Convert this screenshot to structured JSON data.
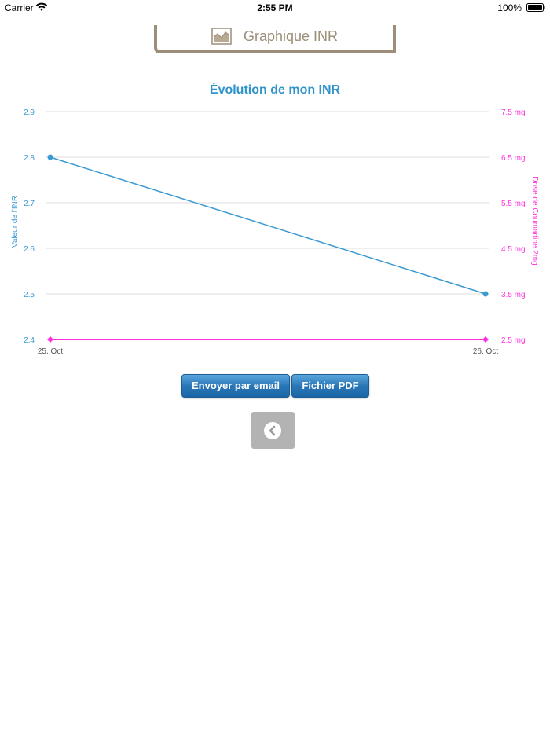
{
  "status_bar": {
    "carrier": "Carrier",
    "time": "2:55 PM",
    "battery": "100%"
  },
  "header": {
    "title": "Graphique INR",
    "icon": "area-chart-icon"
  },
  "chart_data": {
    "type": "line",
    "title": "Évolution de mon INR",
    "x": [
      "25. Oct",
      "26. Oct"
    ],
    "series": [
      {
        "name": "Valeur de l'INR",
        "axis": "left",
        "values": [
          2.8,
          2.5
        ],
        "color": "#3a9ad2"
      },
      {
        "name": "Dose de Coumadine 2mg",
        "axis": "right",
        "values": [
          2.5,
          2.5
        ],
        "color": "#ff33dd"
      }
    ],
    "left_axis": {
      "label": "Valeur de l'INR",
      "ylim": [
        2.4,
        2.9
      ],
      "ticks": [
        "2.9",
        "2.8",
        "2.7",
        "2.6",
        "2.5",
        "2.4"
      ]
    },
    "right_axis": {
      "label": "Dose de Coumadine 2mg",
      "ylim": [
        2.5,
        7.5
      ],
      "ticks": [
        "7.5 mg",
        "6.5 mg",
        "5.5 mg",
        "4.5 mg",
        "3.5 mg",
        "2.5 mg"
      ]
    },
    "grid": true
  },
  "buttons": {
    "email": "Envoyer par email",
    "pdf": "Fichier PDF"
  },
  "colors": {
    "inr": "#3a9ad2",
    "dose": "#ff33dd",
    "header": "#9c8e78"
  }
}
